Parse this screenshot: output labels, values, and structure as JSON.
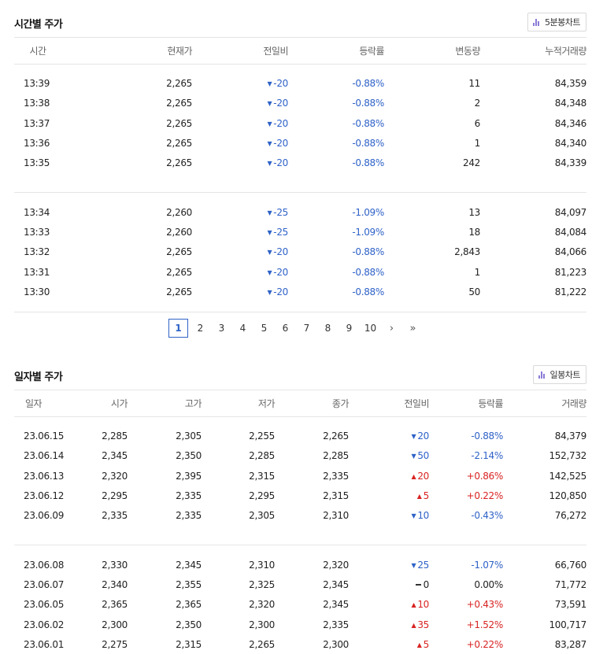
{
  "hourly": {
    "title": "시간별 주가",
    "chart_button": "5분봉차트",
    "headers": [
      "시간",
      "현재가",
      "전일비",
      "등락률",
      "변동량",
      "누적거래량"
    ],
    "groups": [
      [
        {
          "time": "13:39",
          "price": "2,265",
          "dir": "down",
          "change": "-20",
          "rate": "-0.88%",
          "vol": "11",
          "cum": "84,359"
        },
        {
          "time": "13:38",
          "price": "2,265",
          "dir": "down",
          "change": "-20",
          "rate": "-0.88%",
          "vol": "2",
          "cum": "84,348"
        },
        {
          "time": "13:37",
          "price": "2,265",
          "dir": "down",
          "change": "-20",
          "rate": "-0.88%",
          "vol": "6",
          "cum": "84,346"
        },
        {
          "time": "13:36",
          "price": "2,265",
          "dir": "down",
          "change": "-20",
          "rate": "-0.88%",
          "vol": "1",
          "cum": "84,340"
        },
        {
          "time": "13:35",
          "price": "2,265",
          "dir": "down",
          "change": "-20",
          "rate": "-0.88%",
          "vol": "242",
          "cum": "84,339"
        }
      ],
      [
        {
          "time": "13:34",
          "price": "2,260",
          "dir": "down",
          "change": "-25",
          "rate": "-1.09%",
          "vol": "13",
          "cum": "84,097"
        },
        {
          "time": "13:33",
          "price": "2,260",
          "dir": "down",
          "change": "-25",
          "rate": "-1.09%",
          "vol": "18",
          "cum": "84,084"
        },
        {
          "time": "13:32",
          "price": "2,265",
          "dir": "down",
          "change": "-20",
          "rate": "-0.88%",
          "vol": "2,843",
          "cum": "84,066"
        },
        {
          "time": "13:31",
          "price": "2,265",
          "dir": "down",
          "change": "-20",
          "rate": "-0.88%",
          "vol": "1",
          "cum": "81,223"
        },
        {
          "time": "13:30",
          "price": "2,265",
          "dir": "down",
          "change": "-20",
          "rate": "-0.88%",
          "vol": "50",
          "cum": "81,222"
        }
      ]
    ]
  },
  "pagination": {
    "pages": [
      "1",
      "2",
      "3",
      "4",
      "5",
      "6",
      "7",
      "8",
      "9",
      "10"
    ],
    "current": "1",
    "next": "›",
    "last": "»"
  },
  "daily": {
    "title": "일자별 주가",
    "chart_button": "일봉차트",
    "headers": [
      "일자",
      "시가",
      "고가",
      "저가",
      "종가",
      "전일비",
      "등락률",
      "거래량"
    ],
    "groups": [
      [
        {
          "date": "23.06.15",
          "open": "2,285",
          "high": "2,305",
          "low": "2,255",
          "close": "2,265",
          "dir": "down",
          "change": "20",
          "rate": "-0.88%",
          "vol": "84,379"
        },
        {
          "date": "23.06.14",
          "open": "2,345",
          "high": "2,350",
          "low": "2,285",
          "close": "2,285",
          "dir": "down",
          "change": "50",
          "rate": "-2.14%",
          "vol": "152,732"
        },
        {
          "date": "23.06.13",
          "open": "2,320",
          "high": "2,395",
          "low": "2,315",
          "close": "2,335",
          "dir": "up",
          "change": "20",
          "rate": "+0.86%",
          "vol": "142,525"
        },
        {
          "date": "23.06.12",
          "open": "2,295",
          "high": "2,335",
          "low": "2,295",
          "close": "2,315",
          "dir": "up",
          "change": "5",
          "rate": "+0.22%",
          "vol": "120,850"
        },
        {
          "date": "23.06.09",
          "open": "2,335",
          "high": "2,335",
          "low": "2,305",
          "close": "2,310",
          "dir": "down",
          "change": "10",
          "rate": "-0.43%",
          "vol": "76,272"
        }
      ],
      [
        {
          "date": "23.06.08",
          "open": "2,330",
          "high": "2,345",
          "low": "2,310",
          "close": "2,320",
          "dir": "down",
          "change": "25",
          "rate": "-1.07%",
          "vol": "66,760"
        },
        {
          "date": "23.06.07",
          "open": "2,340",
          "high": "2,355",
          "low": "2,325",
          "close": "2,345",
          "dir": "flat",
          "change": "0",
          "rate": "0.00%",
          "vol": "71,772"
        },
        {
          "date": "23.06.05",
          "open": "2,365",
          "high": "2,365",
          "low": "2,320",
          "close": "2,345",
          "dir": "up",
          "change": "10",
          "rate": "+0.43%",
          "vol": "73,591"
        },
        {
          "date": "23.06.02",
          "open": "2,300",
          "high": "2,350",
          "low": "2,300",
          "close": "2,335",
          "dir": "up",
          "change": "35",
          "rate": "+1.52%",
          "vol": "100,717"
        },
        {
          "date": "23.06.01",
          "open": "2,275",
          "high": "2,315",
          "low": "2,265",
          "close": "2,300",
          "dir": "up",
          "change": "5",
          "rate": "+0.22%",
          "vol": "83,287"
        }
      ]
    ]
  },
  "colors": {
    "down": "#2f62c8",
    "up": "#d92323",
    "accent": "#2f62c8"
  },
  "icons": {
    "chart_button": "bar-chart-icon",
    "down": "triangle-down-icon",
    "up": "triangle-up-icon",
    "flat": "dash-icon"
  }
}
